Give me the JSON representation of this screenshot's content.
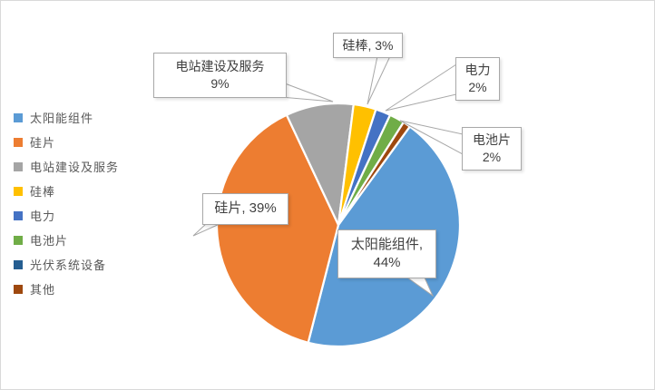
{
  "chart_data": {
    "type": "pie",
    "title": "",
    "categories": [
      "太阳能组件",
      "硅片",
      "电站建设及服务",
      "硅棒",
      "电力",
      "电池片",
      "光伏系统设备",
      "其他"
    ],
    "values": [
      44,
      39,
      9,
      3,
      2,
      2,
      0,
      1
    ],
    "unit": "%",
    "colors": [
      "#5B9BD5",
      "#ED7D31",
      "#A5A5A5",
      "#FFC000",
      "#4472C4",
      "#70AD47",
      "#255E91",
      "#9E480E"
    ],
    "start_angle_deg": 36,
    "direction": "clockwise",
    "legend_position": "left",
    "slice_gap_color": "#FFFFFF",
    "leader_line_color": "#A8A8A8",
    "data_labels": {
      "station_services": {
        "line1": "电站建设及服务",
        "line2": "9%"
      },
      "silicon_rod": {
        "line1": "硅棒, 3%"
      },
      "power": {
        "line1": "电力",
        "line2": "2%"
      },
      "solar_cell": {
        "line1": "电池片",
        "line2": "2%"
      },
      "silicon_wafer": {
        "line1": "硅片, 39%"
      },
      "solar_module": {
        "line1": "太阳能组件,",
        "line2": "44%"
      }
    }
  }
}
